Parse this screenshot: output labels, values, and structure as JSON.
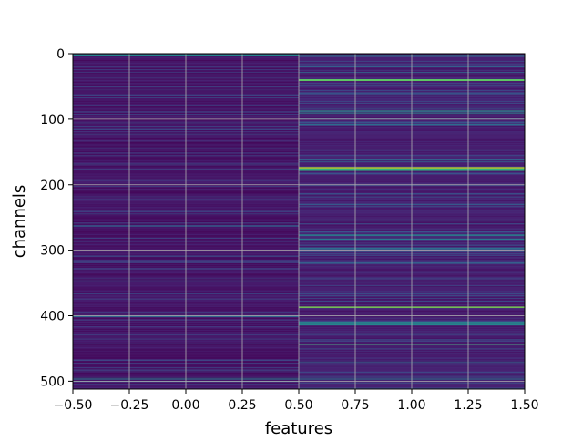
{
  "chart_data": {
    "type": "heatmap",
    "title": "",
    "xlabel": "features",
    "ylabel": "channels",
    "xlim": [
      -0.5,
      1.5
    ],
    "ylim": [
      512,
      0
    ],
    "y_inverted": true,
    "x_ticks": [
      -0.5,
      -0.25,
      0.0,
      0.25,
      0.5,
      0.75,
      1.0,
      1.25,
      1.5
    ],
    "x_tick_labels": [
      "−0.50",
      "−0.25",
      "0.00",
      "0.25",
      "0.50",
      "0.75",
      "1.00",
      "1.25",
      "1.50"
    ],
    "y_ticks": [
      0,
      100,
      200,
      300,
      400,
      500
    ],
    "y_tick_labels": [
      "0",
      "100",
      "200",
      "300",
      "400",
      "500"
    ],
    "grid": true,
    "colormap": "viridis",
    "columns": 2,
    "rows": 512,
    "column_0": {
      "feature": 0,
      "baseline": 0.08,
      "highlighted_channels": [
        {
          "channel": 1,
          "value": 0.45
        },
        {
          "channel": 88,
          "value": 0.2
        },
        {
          "channel": 133,
          "value": 0.18
        },
        {
          "channel": 262,
          "value": 0.3
        },
        {
          "channel": 400,
          "value": 0.35
        },
        {
          "channel": 495,
          "value": 0.45
        },
        {
          "channel": 500,
          "value": 0.3
        }
      ]
    },
    "column_1": {
      "feature": 1,
      "baseline": 0.12,
      "highlighted_channels": [
        {
          "channel": 2,
          "value": 0.45
        },
        {
          "channel": 18,
          "value": 0.3
        },
        {
          "channel": 28,
          "value": 0.35
        },
        {
          "channel": 39,
          "value": 0.75
        },
        {
          "channel": 60,
          "value": 0.3
        },
        {
          "channel": 87,
          "value": 0.6
        },
        {
          "channel": 90,
          "value": 0.55
        },
        {
          "channel": 107,
          "value": 0.35
        },
        {
          "channel": 145,
          "value": 0.4
        },
        {
          "channel": 162,
          "value": 0.35
        },
        {
          "channel": 173,
          "value": 0.9
        },
        {
          "channel": 176,
          "value": 0.65
        },
        {
          "channel": 230,
          "value": 0.3
        },
        {
          "channel": 276,
          "value": 0.45
        },
        {
          "channel": 282,
          "value": 0.4
        },
        {
          "channel": 296,
          "value": 0.35
        },
        {
          "channel": 318,
          "value": 0.3
        },
        {
          "channel": 386,
          "value": 0.8
        },
        {
          "channel": 409,
          "value": 0.5
        },
        {
          "channel": 412,
          "value": 0.45
        },
        {
          "channel": 443,
          "value": 0.85
        },
        {
          "channel": 470,
          "value": 0.35
        },
        {
          "channel": 495,
          "value": 0.4
        }
      ]
    }
  }
}
